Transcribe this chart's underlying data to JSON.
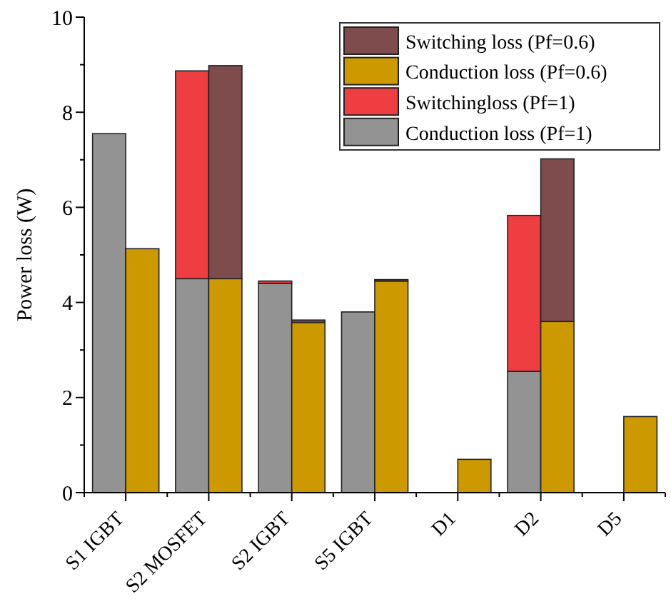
{
  "chart_data": {
    "type": "bar",
    "ylabel": "Power loss (W)",
    "categories": [
      "S1 IGBT",
      null,
      "S2 MOSFET",
      null,
      "S2 IGBT",
      null,
      "S5 IGBT",
      null,
      "D1",
      null,
      "D2",
      null,
      "D5",
      null
    ],
    "series": [
      {
        "name": "Conduction loss (Pf=1)",
        "color": "#939393",
        "values": [
          7.55,
          null,
          4.5,
          null,
          4.4,
          null,
          3.8,
          null,
          0,
          null,
          2.55,
          null,
          0,
          null
        ]
      },
      {
        "name": "Switchingloss (Pf=1)",
        "color": "#ef3e41",
        "values": [
          0,
          null,
          4.37,
          null,
          0.05,
          null,
          0,
          null,
          0,
          null,
          3.28,
          null,
          0,
          null
        ]
      },
      {
        "name": "Conduction loss (Pf=0.6)",
        "color": "#cc9900",
        "values": [
          null,
          5.13,
          null,
          4.5,
          null,
          3.58,
          null,
          4.45,
          null,
          0.7,
          null,
          3.6,
          null,
          1.6
        ]
      },
      {
        "name": "Switching loss (Pf=0.6)",
        "color": "#7e4c4c",
        "values": [
          null,
          0,
          null,
          4.48,
          null,
          0.05,
          null,
          0.03,
          null,
          0,
          null,
          3.42,
          null,
          0
        ]
      }
    ],
    "stacked": true,
    "ylim": [
      0,
      10
    ],
    "yticks": [
      0,
      {
        "value": 1,
        "label": null
      },
      2,
      {
        "value": 3,
        "label": null
      },
      4,
      {
        "value": 5,
        "label": null
      },
      6,
      {
        "value": 7,
        "label": null
      },
      8,
      {
        "value": 9,
        "label": null
      },
      10
    ],
    "grid": false,
    "legend": "top right"
  }
}
